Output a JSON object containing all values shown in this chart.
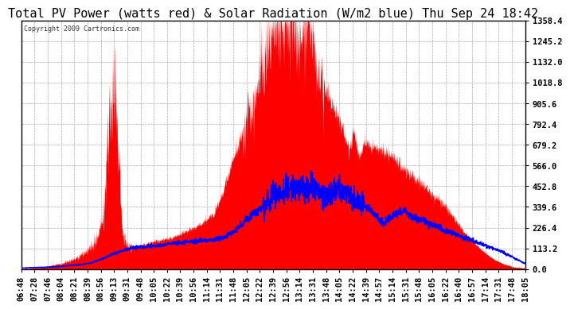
{
  "title": "Total PV Power (watts red) & Solar Radiation (W/m2 blue) Thu Sep 24 18:42",
  "copyright_text": "Copyright 2009 Cartronics.com",
  "ymax": 1358.4,
  "ymin": 0.0,
  "yticks": [
    0.0,
    113.2,
    226.4,
    339.6,
    452.8,
    566.0,
    679.2,
    792.4,
    905.6,
    1018.8,
    1132.0,
    1245.2,
    1358.4
  ],
  "xtick_labels": [
    "06:48",
    "07:28",
    "07:46",
    "08:04",
    "08:21",
    "08:39",
    "08:56",
    "09:13",
    "09:31",
    "09:48",
    "10:05",
    "10:22",
    "10:39",
    "10:56",
    "11:14",
    "11:31",
    "11:48",
    "12:05",
    "12:22",
    "12:39",
    "12:56",
    "13:14",
    "13:31",
    "13:48",
    "14:05",
    "14:22",
    "14:39",
    "14:57",
    "15:14",
    "15:31",
    "15:48",
    "16:05",
    "16:22",
    "16:40",
    "16:57",
    "17:14",
    "17:31",
    "17:48",
    "18:05"
  ],
  "bg_color": "#ffffff",
  "plot_bg_color": "#ffffff",
  "grid_color": "#aaaaaa",
  "red_color": "#ff0000",
  "blue_color": "#0000ff",
  "title_fontsize": 11,
  "tick_fontsize": 7.5,
  "pv_x": [
    0,
    0.02,
    0.04,
    0.06,
    0.08,
    0.1,
    0.12,
    0.14,
    0.155,
    0.165,
    0.17,
    0.175,
    0.18,
    0.185,
    0.19,
    0.195,
    0.2,
    0.21,
    0.22,
    0.24,
    0.26,
    0.28,
    0.3,
    0.32,
    0.34,
    0.36,
    0.38,
    0.4,
    0.42,
    0.44,
    0.46,
    0.47,
    0.48,
    0.49,
    0.5,
    0.51,
    0.52,
    0.53,
    0.535,
    0.54,
    0.545,
    0.55,
    0.555,
    0.56,
    0.565,
    0.57,
    0.575,
    0.58,
    0.585,
    0.59,
    0.6,
    0.61,
    0.62,
    0.63,
    0.64,
    0.65,
    0.66,
    0.67,
    0.68,
    0.69,
    0.7,
    0.72,
    0.74,
    0.76,
    0.78,
    0.8,
    0.82,
    0.84,
    0.86,
    0.88,
    0.9,
    0.92,
    0.94,
    0.96,
    0.98,
    1.0
  ],
  "pv_y": [
    0,
    5,
    10,
    20,
    30,
    50,
    80,
    120,
    200,
    350,
    600,
    820,
    900,
    1000,
    820,
    500,
    200,
    130,
    120,
    130,
    150,
    160,
    170,
    200,
    220,
    250,
    300,
    420,
    600,
    750,
    900,
    1000,
    1100,
    1200,
    1280,
    1320,
    1340,
    1350,
    1355,
    1358,
    1340,
    1300,
    1250,
    1280,
    1320,
    1350,
    1300,
    1200,
    1100,
    1050,
    1000,
    950,
    880,
    820,
    750,
    650,
    750,
    600,
    700,
    680,
    660,
    640,
    600,
    550,
    500,
    450,
    400,
    350,
    280,
    200,
    140,
    90,
    50,
    25,
    10,
    5
  ],
  "solar_x": [
    0,
    0.02,
    0.05,
    0.08,
    0.1,
    0.12,
    0.14,
    0.16,
    0.18,
    0.2,
    0.22,
    0.24,
    0.26,
    0.28,
    0.3,
    0.32,
    0.34,
    0.36,
    0.38,
    0.4,
    0.42,
    0.44,
    0.46,
    0.48,
    0.5,
    0.52,
    0.54,
    0.56,
    0.58,
    0.6,
    0.62,
    0.64,
    0.66,
    0.68,
    0.7,
    0.72,
    0.74,
    0.76,
    0.78,
    0.8,
    0.85,
    0.9,
    0.95,
    1.0
  ],
  "solar_y": [
    5,
    8,
    10,
    15,
    20,
    25,
    35,
    55,
    80,
    100,
    115,
    120,
    125,
    130,
    140,
    145,
    150,
    155,
    160,
    170,
    200,
    250,
    300,
    350,
    390,
    420,
    440,
    450,
    430,
    380,
    420,
    430,
    380,
    350,
    300,
    250,
    300,
    320,
    280,
    260,
    200,
    150,
    100,
    30
  ]
}
